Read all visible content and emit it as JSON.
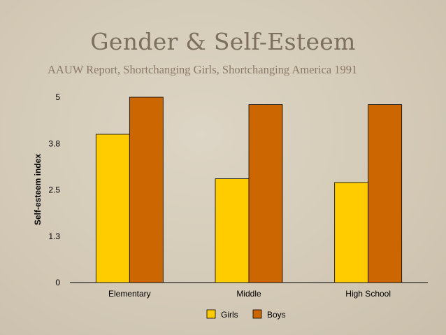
{
  "slide": {
    "title": "Gender & Self-Esteem",
    "subtitle": "AAUW Report, Shortchanging Girls, Shortchanging America 1991"
  },
  "chart_data": {
    "type": "bar",
    "categories": [
      "Elementary",
      "Middle",
      "High School"
    ],
    "series": [
      {
        "name": "Girls",
        "values": [
          4.0,
          2.8,
          2.7
        ],
        "color": "#ffcc00"
      },
      {
        "name": "Boys",
        "values": [
          5.0,
          4.8,
          4.8
        ],
        "color": "#cc6600"
      }
    ],
    "yticks": [
      {
        "value": 0,
        "label": "0"
      },
      {
        "value": 1.25,
        "label": "1.3"
      },
      {
        "value": 2.5,
        "label": "2.5"
      },
      {
        "value": 3.75,
        "label": "3.8"
      },
      {
        "value": 5,
        "label": "5"
      }
    ],
    "ylim": [
      0,
      5
    ],
    "xlabel": "",
    "ylabel": "Self-esteem index",
    "grid": false,
    "legend_position": "bottom"
  }
}
